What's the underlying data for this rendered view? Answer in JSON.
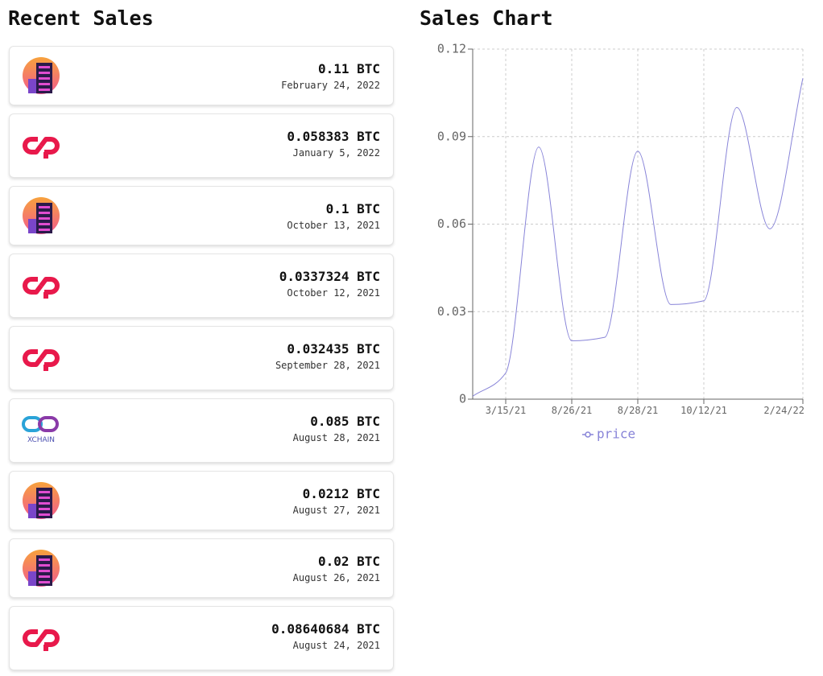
{
  "header": {
    "left_title": "Recent Sales",
    "right_title": "Sales Chart"
  },
  "sales": [
    {
      "amount": "0.11 BTC",
      "date": "February 24, 2022"
    },
    {
      "amount": "0.058383 BTC",
      "date": "January 5, 2022"
    },
    {
      "amount": "0.1 BTC",
      "date": "October 13, 2021"
    },
    {
      "amount": "0.0337324 BTC",
      "date": "October 12, 2021"
    },
    {
      "amount": "0.032435 BTC",
      "date": "September 28, 2021"
    },
    {
      "amount": "0.085 BTC",
      "date": "August 28, 2021",
      "logo_text": "XCHAIN"
    },
    {
      "amount": "0.0212 BTC",
      "date": "August 27, 2021"
    },
    {
      "amount": "0.02 BTC",
      "date": "August 26, 2021"
    },
    {
      "amount": "0.08640684 BTC",
      "date": "August 24, 2021"
    }
  ],
  "chart_data": {
    "type": "line",
    "categories": [
      null,
      "3/15/21",
      null,
      "8/26/21",
      null,
      "8/28/21",
      null,
      "10/12/21",
      null,
      null,
      "2/24/22"
    ],
    "series": [
      {
        "name": "price",
        "color": "#8884d8",
        "values": [
          0.001,
          0.009,
          0.08640684,
          0.02,
          0.0212,
          0.085,
          0.032435,
          0.0337324,
          0.1,
          0.058383,
          0.11
        ]
      }
    ],
    "ylim": [
      0,
      0.12
    ],
    "yticks": [
      0,
      0.03,
      0.06,
      0.09,
      0.12
    ],
    "grid": true
  }
}
